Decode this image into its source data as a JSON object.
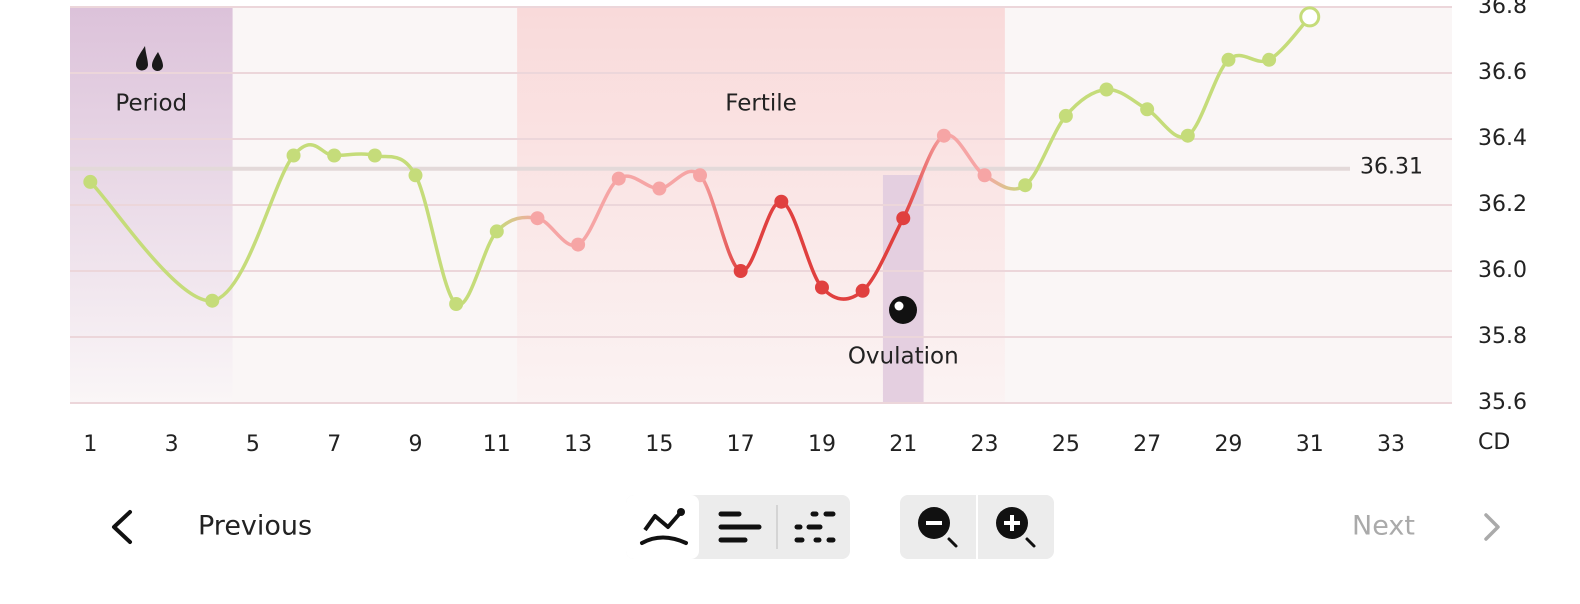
{
  "chart_data": {
    "type": "line",
    "x": [
      1,
      4,
      6,
      7,
      8,
      9,
      10,
      11,
      12,
      13,
      14,
      15,
      16,
      17,
      18,
      19,
      20,
      21,
      22,
      23,
      24,
      25,
      26,
      27,
      28,
      29,
      30,
      31
    ],
    "series": [
      {
        "color": "#c5dc7a",
        "values": [
          36.27,
          35.91,
          36.35,
          36.35,
          36.35,
          36.29,
          35.9,
          36.12,
          36.16,
          36.08,
          36.28,
          36.25,
          36.29,
          36.0,
          36.21,
          35.95,
          35.94,
          36.16,
          36.41,
          36.29,
          36.26,
          36.47,
          36.55,
          36.49,
          36.41,
          36.64,
          36.64,
          36.77
        ],
        "point_colors": [
          "#c5dc7a",
          "#c5dc7a",
          "#c5dc7a",
          "#c5dc7a",
          "#c5dc7a",
          "#c5dc7a",
          "#c5dc7a",
          "#c5dc7a",
          "#f6a5a5",
          "#f6a5a5",
          "#f6a5a5",
          "#f6a5a5",
          "#f6a5a5",
          "#e0403f",
          "#e0403f",
          "#e0403f",
          "#e0403f",
          "#e0403f",
          "#f6a5a5",
          "#f6a5a5",
          "#c5dc7a",
          "#c5dc7a",
          "#c5dc7a",
          "#c5dc7a",
          "#c5dc7a",
          "#c5dc7a",
          "#c5dc7a",
          "#c5dc7a"
        ]
      }
    ],
    "xlim": [
      0.5,
      34.5
    ],
    "xticks": [
      1,
      3,
      5,
      7,
      9,
      11,
      13,
      15,
      17,
      19,
      21,
      23,
      25,
      27,
      29,
      31,
      33
    ],
    "xlabel": "CD",
    "ylim": [
      35.6,
      36.8
    ],
    "yticks": [
      35.6,
      35.8,
      {
        "value": 36,
        "label": "36.0"
      },
      36.2,
      36.4,
      36.6,
      36.8
    ],
    "grid": true,
    "coverline": 36.31,
    "bands": [
      {
        "label": "Period",
        "start": 0.5,
        "end": 4.5,
        "color": "#dcc2da"
      },
      {
        "label": "Fertile",
        "start": 11.5,
        "end": 23.5,
        "color": "#f9dada"
      },
      {
        "label": "Ovulation",
        "start": 20.5,
        "end": 21.5,
        "color": "#e4cfe0"
      }
    ]
  },
  "nav": {
    "previous": "Previous",
    "next": "Next"
  }
}
